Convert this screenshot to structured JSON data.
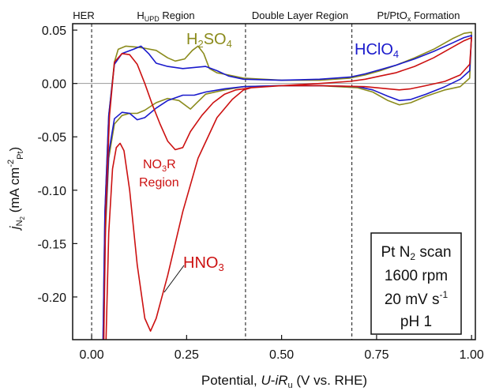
{
  "chart_data": {
    "type": "line",
    "xlabel": {
      "prefix": "Potential, ",
      "u": "U",
      "dash": "-",
      "i": "i",
      "r": "R",
      "r_sub": "u",
      "suffix": " (V vs. RHE)"
    },
    "ylabel": {
      "j": "j",
      "n": "N",
      "n_sub": "2",
      "unit_open": " (mA cm",
      "exp": "-2",
      "pt": "Pt",
      "unit_close": ")"
    },
    "xlim": [
      -0.05,
      1.01
    ],
    "ylim": [
      -0.24,
      0.056
    ],
    "x_ticks": [
      0.0,
      0.25,
      0.5,
      0.75,
      1.0
    ],
    "x_tick_labels": [
      "0.00",
      "0.25",
      "0.50",
      "0.75",
      "1.00"
    ],
    "y_ticks": [
      0.05,
      0.0,
      -0.05,
      -0.1,
      -0.15,
      -0.2
    ],
    "y_tick_labels": [
      "0.05",
      "0.00",
      "-0.05",
      "-0.10",
      "-0.15",
      "-0.20"
    ],
    "zero_line": 0.0,
    "region_lines_x": [
      0.0,
      0.405,
      0.685
    ],
    "regions": {
      "her": "HER",
      "hupd_main": "H",
      "hupd_sub": "UPD",
      "hupd_tail": " Region",
      "double": "Double Layer Region",
      "ptox_main": "Pt/PtO",
      "ptox_sub": "x",
      "ptox_tail": " Formation"
    },
    "labels": {
      "h2so4": {
        "a": "H",
        "b": "2",
        "c": "SO",
        "d": "4"
      },
      "hclo4": {
        "a": "HClO",
        "b": "4"
      },
      "hno3": "HNO",
      "hno3_sub": "3",
      "no3r": {
        "a": "NO",
        "b": "3",
        "c": "R",
        "line2": "Region"
      }
    },
    "info_box": {
      "l1a": "Pt N",
      "l1b": "2",
      "l1c": " scan",
      "l2": "1600 rpm",
      "l3a": "20 mV s",
      "l3b": "-1",
      "l4": "pH 1"
    },
    "series": [
      {
        "name": "H2SO4",
        "color": "#8b8b1c",
        "points": [
          [
            0.03,
            -0.24
          ],
          [
            0.035,
            -0.12
          ],
          [
            0.045,
            -0.03
          ],
          [
            0.06,
            0.02
          ],
          [
            0.07,
            0.032
          ],
          [
            0.09,
            0.035
          ],
          [
            0.12,
            0.034
          ],
          [
            0.14,
            0.033
          ],
          [
            0.17,
            0.031
          ],
          [
            0.2,
            0.024
          ],
          [
            0.22,
            0.021
          ],
          [
            0.245,
            0.023
          ],
          [
            0.265,
            0.031
          ],
          [
            0.28,
            0.035
          ],
          [
            0.295,
            0.028
          ],
          [
            0.31,
            0.014
          ],
          [
            0.33,
            0.01
          ],
          [
            0.36,
            0.008
          ],
          [
            0.4,
            0.005
          ],
          [
            0.5,
            0.003
          ],
          [
            0.6,
            0.003
          ],
          [
            0.68,
            0.005
          ],
          [
            0.72,
            0.008
          ],
          [
            0.76,
            0.012
          ],
          [
            0.8,
            0.017
          ],
          [
            0.85,
            0.024
          ],
          [
            0.9,
            0.032
          ],
          [
            0.95,
            0.042
          ],
          [
            0.98,
            0.047
          ],
          [
            1.0,
            0.048
          ],
          [
            0.995,
            0.005
          ],
          [
            0.97,
            -0.003
          ],
          [
            0.93,
            -0.006
          ],
          [
            0.88,
            -0.012
          ],
          [
            0.84,
            -0.018
          ],
          [
            0.81,
            -0.02
          ],
          [
            0.78,
            -0.016
          ],
          [
            0.74,
            -0.008
          ],
          [
            0.7,
            -0.004
          ],
          [
            0.6,
            -0.002
          ],
          [
            0.5,
            -0.002
          ],
          [
            0.4,
            -0.003
          ],
          [
            0.35,
            -0.006
          ],
          [
            0.3,
            -0.01
          ],
          [
            0.28,
            -0.017
          ],
          [
            0.26,
            -0.024
          ],
          [
            0.23,
            -0.016
          ],
          [
            0.2,
            -0.014
          ],
          [
            0.17,
            -0.018
          ],
          [
            0.14,
            -0.025
          ],
          [
            0.12,
            -0.028
          ],
          [
            0.1,
            -0.028
          ],
          [
            0.08,
            -0.03
          ],
          [
            0.06,
            -0.038
          ],
          [
            0.045,
            -0.07
          ],
          [
            0.035,
            -0.15
          ],
          [
            0.03,
            -0.24
          ]
        ]
      },
      {
        "name": "HClO4",
        "color": "#1a1acc",
        "points": [
          [
            0.03,
            -0.24
          ],
          [
            0.035,
            -0.12
          ],
          [
            0.045,
            -0.03
          ],
          [
            0.06,
            0.018
          ],
          [
            0.08,
            0.028
          ],
          [
            0.11,
            0.032
          ],
          [
            0.13,
            0.035
          ],
          [
            0.15,
            0.028
          ],
          [
            0.17,
            0.019
          ],
          [
            0.2,
            0.016
          ],
          [
            0.24,
            0.014
          ],
          [
            0.27,
            0.015
          ],
          [
            0.3,
            0.016
          ],
          [
            0.33,
            0.012
          ],
          [
            0.36,
            0.007
          ],
          [
            0.4,
            0.004
          ],
          [
            0.5,
            0.003
          ],
          [
            0.6,
            0.004
          ],
          [
            0.68,
            0.006
          ],
          [
            0.72,
            0.009
          ],
          [
            0.76,
            0.013
          ],
          [
            0.8,
            0.017
          ],
          [
            0.85,
            0.023
          ],
          [
            0.9,
            0.03
          ],
          [
            0.95,
            0.038
          ],
          [
            0.98,
            0.043
          ],
          [
            1.0,
            0.045
          ],
          [
            0.995,
            0.012
          ],
          [
            0.97,
            0.004
          ],
          [
            0.93,
            -0.003
          ],
          [
            0.88,
            -0.01
          ],
          [
            0.84,
            -0.015
          ],
          [
            0.81,
            -0.016
          ],
          [
            0.78,
            -0.012
          ],
          [
            0.74,
            -0.006
          ],
          [
            0.7,
            -0.003
          ],
          [
            0.6,
            -0.002
          ],
          [
            0.5,
            -0.002
          ],
          [
            0.4,
            -0.003
          ],
          [
            0.35,
            -0.005
          ],
          [
            0.3,
            -0.008
          ],
          [
            0.27,
            -0.011
          ],
          [
            0.24,
            -0.011
          ],
          [
            0.2,
            -0.016
          ],
          [
            0.17,
            -0.023
          ],
          [
            0.14,
            -0.032
          ],
          [
            0.12,
            -0.034
          ],
          [
            0.1,
            -0.028
          ],
          [
            0.08,
            -0.027
          ],
          [
            0.06,
            -0.033
          ],
          [
            0.045,
            -0.065
          ],
          [
            0.035,
            -0.14
          ],
          [
            0.03,
            -0.24
          ]
        ]
      },
      {
        "name": "HNO3",
        "color": "#cc1111",
        "points": [
          [
            0.032,
            -0.24
          ],
          [
            0.037,
            -0.12
          ],
          [
            0.047,
            -0.03
          ],
          [
            0.06,
            0.02
          ],
          [
            0.08,
            0.028
          ],
          [
            0.1,
            0.027
          ],
          [
            0.12,
            0.018
          ],
          [
            0.14,
            0.0
          ],
          [
            0.16,
            -0.02
          ],
          [
            0.18,
            -0.038
          ],
          [
            0.2,
            -0.054
          ],
          [
            0.22,
            -0.062
          ],
          [
            0.24,
            -0.06
          ],
          [
            0.26,
            -0.045
          ],
          [
            0.29,
            -0.03
          ],
          [
            0.32,
            -0.018
          ],
          [
            0.35,
            -0.01
          ],
          [
            0.38,
            -0.006
          ],
          [
            0.42,
            -0.004
          ],
          [
            0.5,
            -0.002
          ],
          [
            0.6,
            0.0
          ],
          [
            0.68,
            0.002
          ],
          [
            0.72,
            0.004
          ],
          [
            0.76,
            0.007
          ],
          [
            0.8,
            0.01
          ],
          [
            0.85,
            0.016
          ],
          [
            0.9,
            0.024
          ],
          [
            0.95,
            0.034
          ],
          [
            0.98,
            0.04
          ],
          [
            1.0,
            0.043
          ],
          [
            0.995,
            0.018
          ],
          [
            0.97,
            0.008
          ],
          [
            0.93,
            0.002
          ],
          [
            0.88,
            -0.002
          ],
          [
            0.84,
            -0.005
          ],
          [
            0.81,
            -0.006
          ],
          [
            0.78,
            -0.005
          ],
          [
            0.72,
            -0.003
          ],
          [
            0.6,
            -0.002
          ],
          [
            0.5,
            -0.002
          ],
          [
            0.42,
            -0.004
          ],
          [
            0.4,
            -0.006
          ],
          [
            0.37,
            -0.015
          ],
          [
            0.33,
            -0.032
          ],
          [
            0.28,
            -0.07
          ],
          [
            0.24,
            -0.12
          ],
          [
            0.2,
            -0.18
          ],
          [
            0.17,
            -0.22
          ],
          [
            0.155,
            -0.232
          ],
          [
            0.14,
            -0.22
          ],
          [
            0.12,
            -0.17
          ],
          [
            0.1,
            -0.1
          ],
          [
            0.085,
            -0.063
          ],
          [
            0.075,
            -0.056
          ],
          [
            0.065,
            -0.06
          ],
          [
            0.055,
            -0.08
          ],
          [
            0.045,
            -0.14
          ],
          [
            0.038,
            -0.24
          ]
        ]
      }
    ]
  }
}
